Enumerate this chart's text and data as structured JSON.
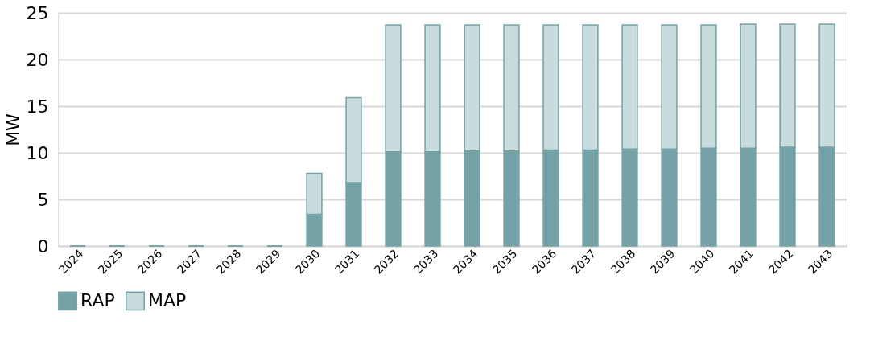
{
  "chart_data": {
    "type": "bar",
    "stacked": true,
    "ylabel": "MW",
    "categories": [
      "2024",
      "2025",
      "2026",
      "2027",
      "2028",
      "2029",
      "2030",
      "2031",
      "2032",
      "2033",
      "2034",
      "2035",
      "2036",
      "2037",
      "2038",
      "2039",
      "2040",
      "2041",
      "2042",
      "2043"
    ],
    "series": [
      {
        "name": "RAP",
        "color": "#74a2a6",
        "values": [
          0,
          0,
          0,
          0,
          0,
          0,
          3.4,
          6.8,
          10.1,
          10.1,
          10.2,
          10.2,
          10.3,
          10.3,
          10.4,
          10.4,
          10.5,
          10.5,
          10.6,
          10.6
        ]
      },
      {
        "name": "MAP",
        "color": "#c8dcde",
        "values": [
          0,
          0,
          0,
          0,
          0,
          0,
          4.4,
          9.1,
          13.6,
          13.6,
          13.5,
          13.5,
          13.4,
          13.4,
          13.3,
          13.3,
          13.2,
          13.3,
          13.2,
          13.2
        ]
      }
    ],
    "ylim": [
      0,
      25
    ],
    "yticks": [
      0,
      5,
      10,
      15,
      20,
      25
    ],
    "grid": "y",
    "legend": "bottom"
  }
}
